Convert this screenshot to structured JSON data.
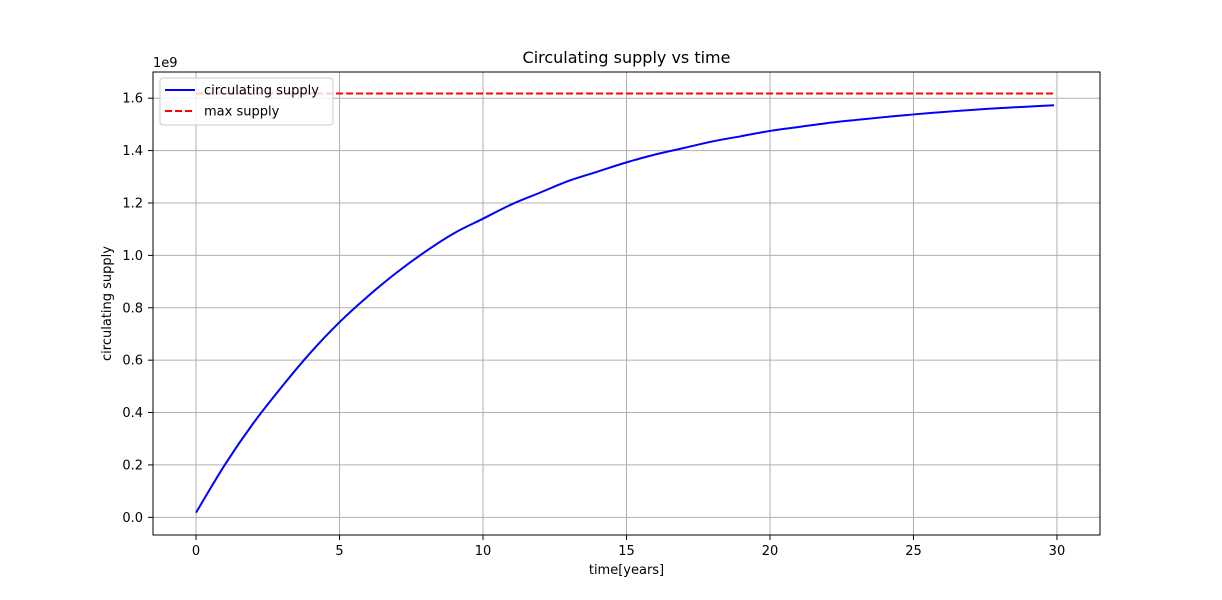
{
  "chart_data": {
    "type": "line",
    "title": "Circulating supply vs time",
    "xlabel": "time[years]",
    "ylabel": "circulating supply",
    "y_scale_label": "1e9",
    "xlim": [
      -1.5,
      31.5
    ],
    "ylim": [
      -0.0675,
      1.7
    ],
    "x_ticks": [
      0,
      5,
      10,
      15,
      20,
      25,
      30
    ],
    "x_tick_labels": [
      "0",
      "5",
      "10",
      "15",
      "20",
      "25",
      "30"
    ],
    "y_ticks": [
      0.0,
      0.2,
      0.4,
      0.6,
      0.8,
      1.0,
      1.2,
      1.4,
      1.6
    ],
    "y_tick_labels": [
      "0.0",
      "0.2",
      "0.4",
      "0.6",
      "0.8",
      "1.0",
      "1.2",
      "1.4",
      "1.6"
    ],
    "grid": true,
    "legend_position": "top-left",
    "series": [
      {
        "name": "circulating supply",
        "color": "#0000ff",
        "style": "solid",
        "x": [
          0,
          1,
          2,
          3,
          4,
          5,
          6,
          7,
          8,
          9,
          10,
          11,
          12,
          13,
          14,
          15,
          16,
          17,
          18,
          19,
          20,
          21,
          22,
          23,
          24,
          25,
          26,
          27,
          28,
          29,
          29.9
        ],
        "y": [
          0.018,
          0.2,
          0.36,
          0.5,
          0.63,
          0.745,
          0.845,
          0.935,
          1.015,
          1.085,
          1.14,
          1.195,
          1.24,
          1.285,
          1.32,
          1.355,
          1.385,
          1.41,
          1.435,
          1.455,
          1.475,
          1.49,
          1.505,
          1.517,
          1.528,
          1.538,
          1.547,
          1.555,
          1.562,
          1.568,
          1.573
        ]
      },
      {
        "name": "max supply",
        "color": "#ff0000",
        "style": "dashed",
        "x": [
          0,
          29.9
        ],
        "y": [
          1.618,
          1.618
        ]
      }
    ]
  }
}
